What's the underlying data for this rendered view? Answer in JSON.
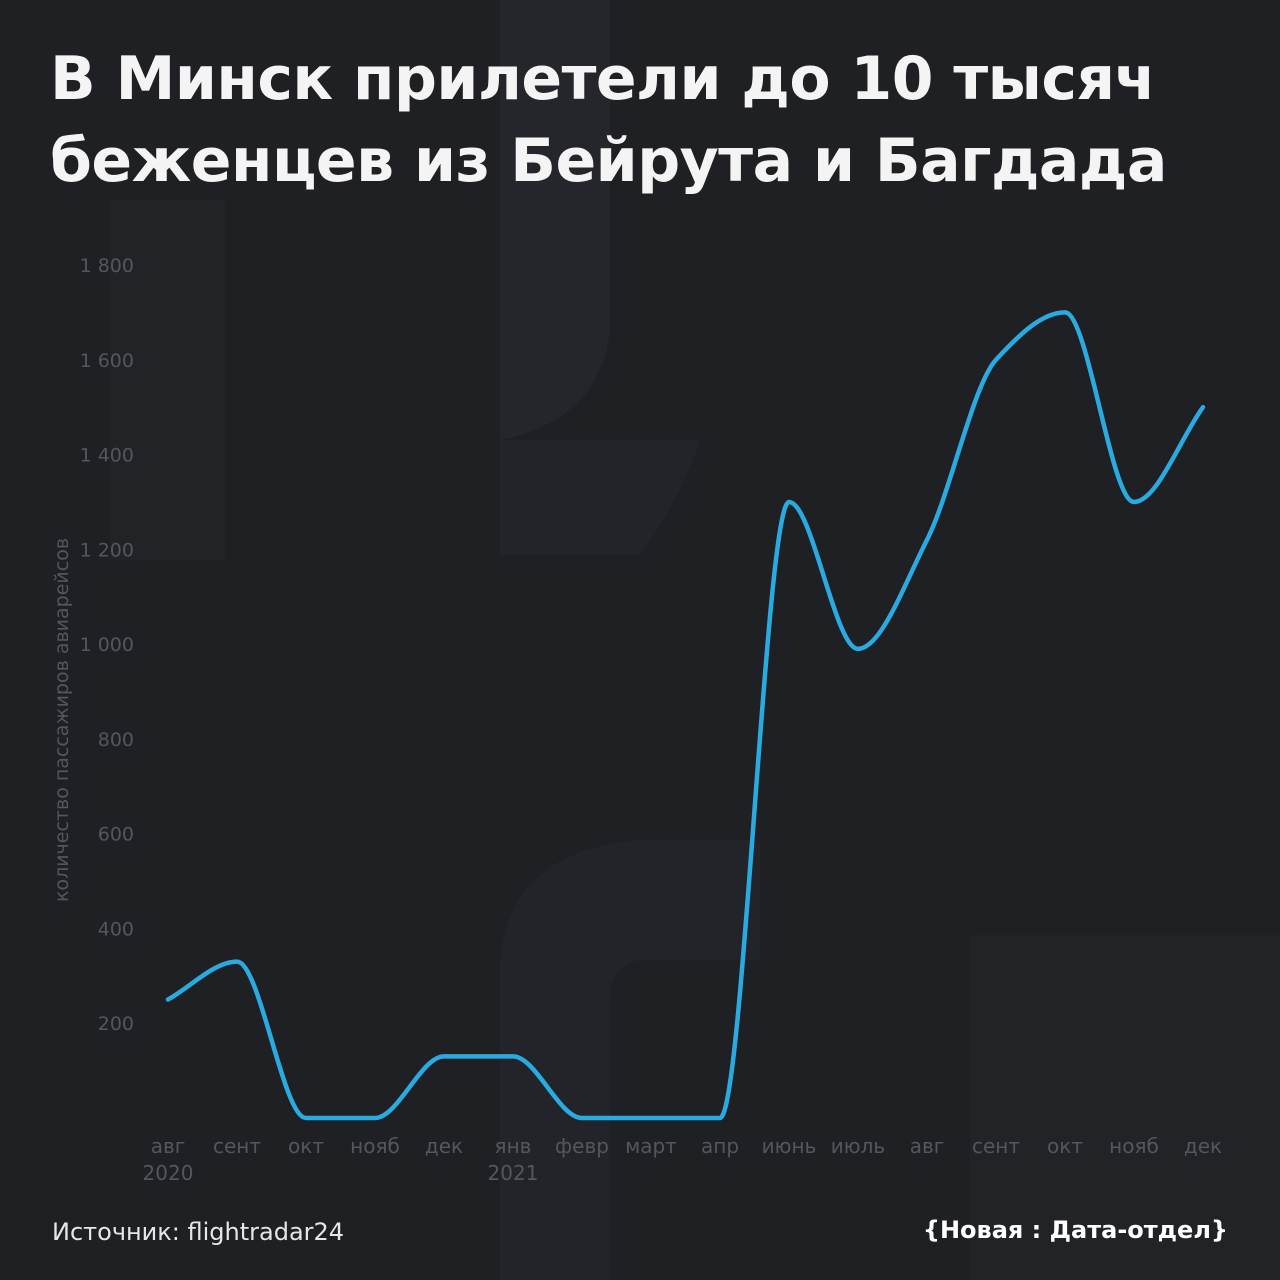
{
  "title": {
    "line1": "В Минск прилетели до 10 тысяч",
    "line2": "беженцев из Бейрута и Багдада"
  },
  "footer": {
    "source": "Источник: flightradar24",
    "brand": "{Новая : Дата-отдел}"
  },
  "colors": {
    "background": "#1f2024",
    "line": "#29abe2",
    "axis_text": "#55565c",
    "watermark": "#27282d"
  },
  "chart_data": {
    "type": "line",
    "title": "",
    "xlabel": "",
    "ylabel": "количество пассажиров авиарейсов",
    "ylim": [
      0,
      1800
    ],
    "yticks": [
      200,
      400,
      600,
      800,
      1000,
      1200,
      1400,
      1600,
      1800
    ],
    "ytick_labels": [
      "200",
      "400",
      "600",
      "800",
      "1 000",
      "1 200",
      "1 400",
      "1 600",
      "1 800"
    ],
    "categories": [
      "авг",
      "сент",
      "окт",
      "нояб",
      "дек",
      "янв",
      "февр",
      "март",
      "апр",
      "июнь",
      "июль",
      "авг",
      "сент",
      "окт",
      "нояб",
      "дек"
    ],
    "year_labels": [
      {
        "index": 0,
        "label": "2020"
      },
      {
        "index": 5,
        "label": "2021"
      }
    ],
    "grid": false,
    "series": [
      {
        "values": [
          250,
          330,
          0,
          0,
          130,
          130,
          0,
          0,
          0,
          1300,
          990,
          1220,
          1600,
          1700,
          1300,
          1500
        ]
      }
    ]
  }
}
